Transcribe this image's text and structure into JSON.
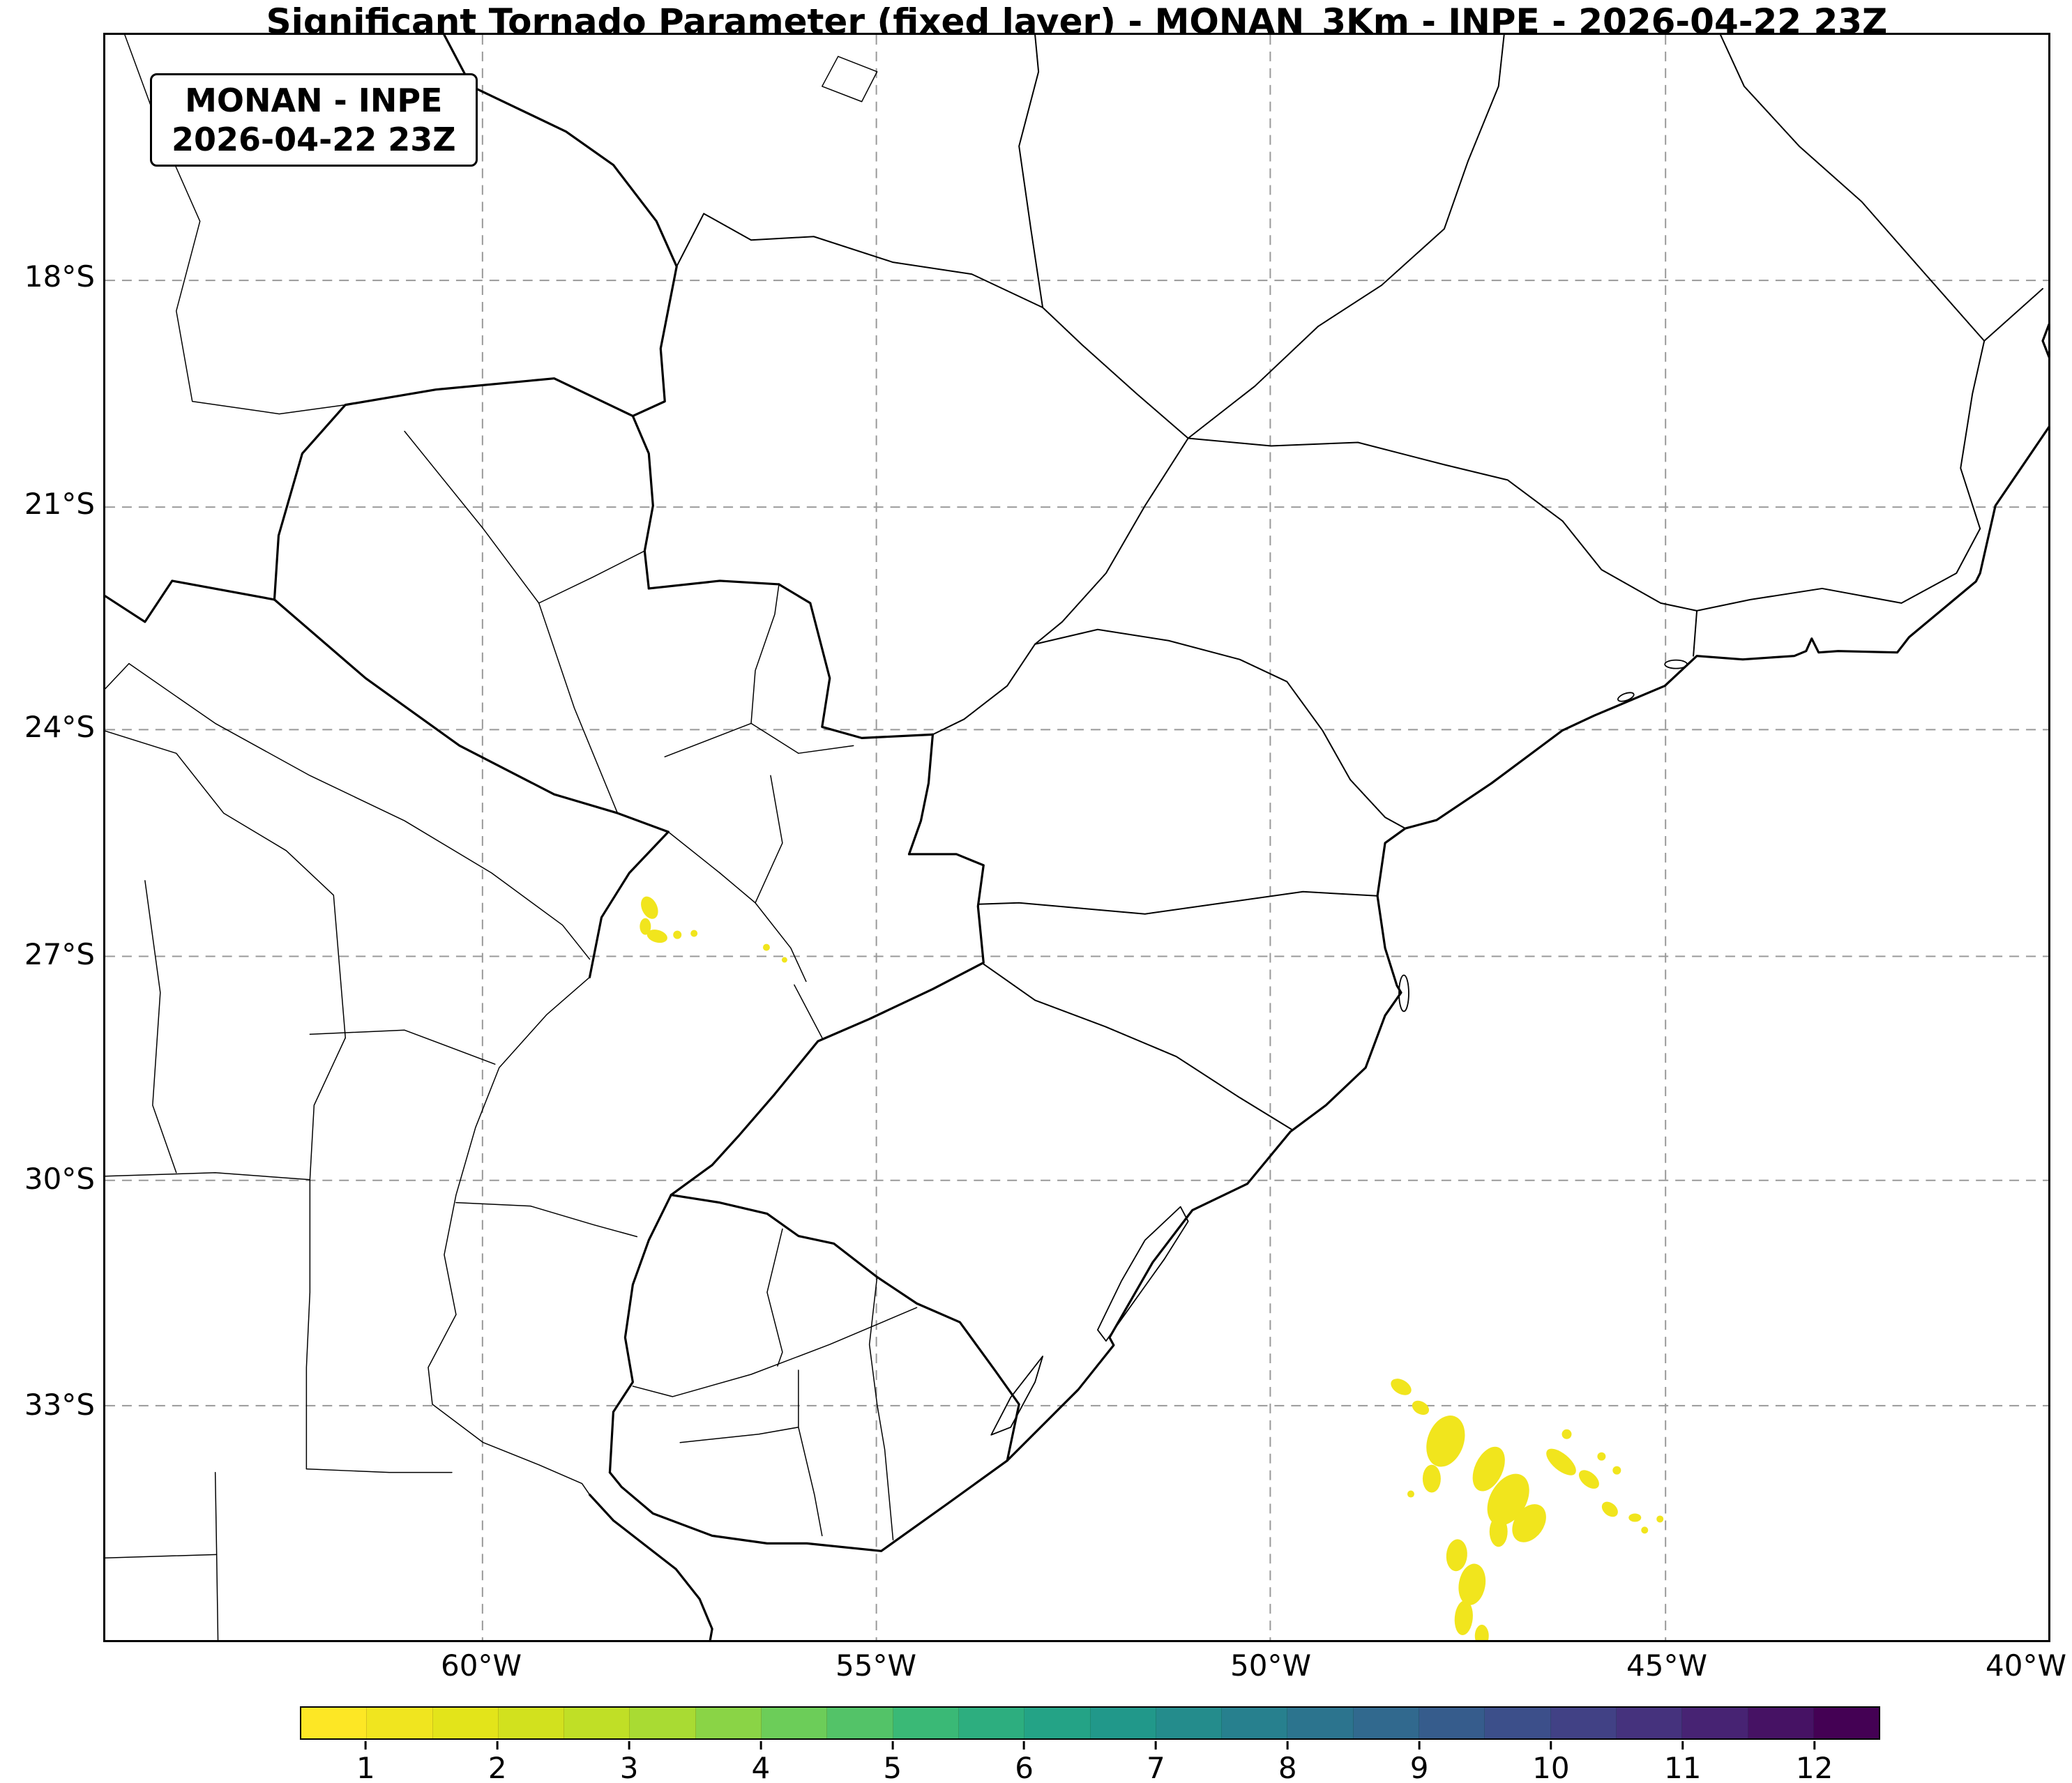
{
  "title": "Significant Tornado Parameter (fixed layer) - MONAN_3Km - INPE - 2026-04-22 23Z",
  "annotation": {
    "line1": "MONAN - INPE",
    "line2": "2026-04-22 23Z"
  },
  "axes": {
    "lat_ticks": [
      {
        "label": "18°S"
      },
      {
        "label": "21°S"
      },
      {
        "label": "24°S"
      },
      {
        "label": "27°S"
      },
      {
        "label": "30°S"
      },
      {
        "label": "33°S"
      }
    ],
    "lon_ticks": [
      {
        "label": "60°W"
      },
      {
        "label": "55°W"
      },
      {
        "label": "50°W"
      },
      {
        "label": "45°W"
      },
      {
        "label": "40°W"
      }
    ]
  },
  "colorbar": {
    "tick_labels": [
      "1",
      "2",
      "3",
      "4",
      "5",
      "6",
      "7",
      "8",
      "9",
      "10",
      "11",
      "12"
    ],
    "colormap": "viridis reversed (yellow = low, dark purple = high)",
    "cell_colors": [
      "#fde725",
      "#f0e51f",
      "#e3e41a",
      "#d2e11e",
      "#c0df26",
      "#a9db33",
      "#8ad446",
      "#6ccd59",
      "#53c368",
      "#3ab976",
      "#2dae7f",
      "#24a386",
      "#21988a",
      "#248c8c",
      "#27808e",
      "#2c748e",
      "#31698e",
      "#365c8c",
      "#3c4f8a",
      "#414185",
      "#45327d",
      "#472373",
      "#461264",
      "#440154"
    ],
    "border_color": "#000000"
  },
  "map": {
    "stp_patch_color": "#f1e51d",
    "gridline_color": "#999999",
    "border_color": "#000000",
    "background": "#ffffff"
  },
  "chart_data": {
    "type": "heatmap",
    "title": "Significant Tornado Parameter (fixed layer) - MONAN_3Km - INPE - 2026-04-22 23Z",
    "variable": "Significant Tornado Parameter (fixed layer)",
    "model": "MONAN_3Km",
    "institution": "INPE",
    "valid_time": "2026-04-22 23Z",
    "colormap": "viridis_r",
    "colorbar_levels": [
      1,
      2,
      3,
      4,
      5,
      6,
      7,
      8,
      9,
      10,
      11,
      12
    ],
    "lat_ticks_deg_south": [
      18,
      21,
      24,
      27,
      30,
      33
    ],
    "lon_ticks_deg_west": [
      60,
      55,
      50,
      45,
      40
    ],
    "map_extent": {
      "west": "≈65°W",
      "east": "≈40°W",
      "north": "≈15°S",
      "south": "≈36°S"
    },
    "grid": "dashed gray graticule every 3° lat / 5° lon",
    "regions_with_values": [
      {
        "location": "near Paraguay–Argentina border, ~58°W 26.5–27°S",
        "stp_value": "≈0.5–1 (lowest contour level, yellow)"
      },
      {
        "location": "South Atlantic offshore, ~48.5–45°W 33–36°S (scattered cluster)",
        "stp_value": "≈0.5–1.5 (lowest contour levels, yellow)"
      }
    ]
  }
}
